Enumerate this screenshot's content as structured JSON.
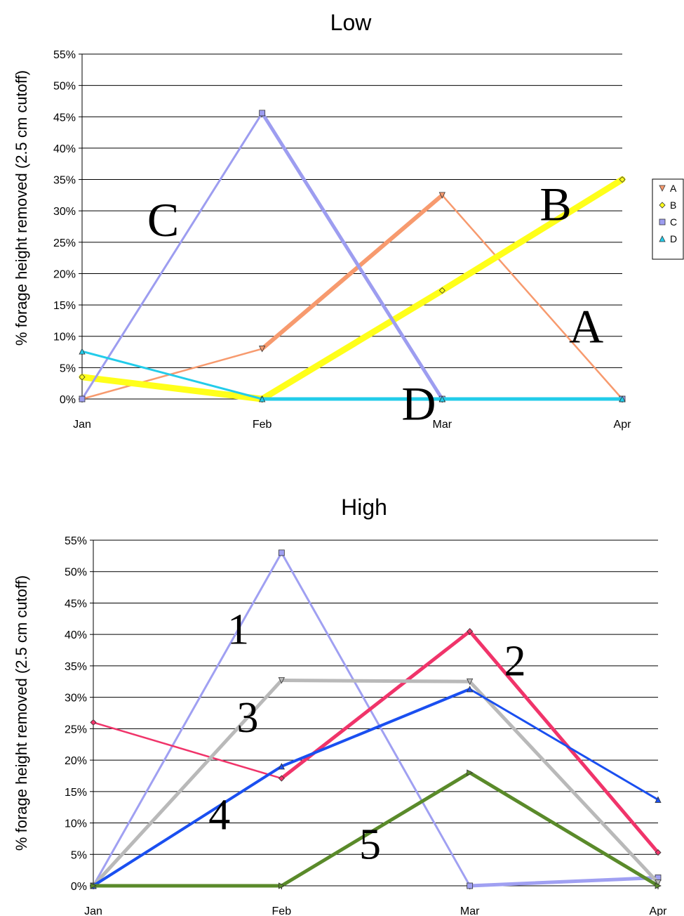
{
  "chart_data": [
    {
      "type": "line",
      "title": "Low",
      "ylabel": "% forage height removed (2.5 cm cutoff)",
      "categories": [
        "Jan",
        "Feb",
        "Mar",
        "Apr"
      ],
      "ylim": [
        0,
        55
      ],
      "yticks": [
        "0%",
        "5%",
        "10%",
        "15%",
        "20%",
        "25%",
        "30%",
        "35%",
        "40%",
        "45%",
        "50%",
        "55%"
      ],
      "grid": true,
      "legend": "right",
      "series": [
        {
          "name": "A",
          "values": [
            0,
            8,
            32.5,
            0
          ],
          "color": "#f79a6e",
          "marker": "triangle-down",
          "widths": [
            2.5,
            6,
            2.5
          ]
        },
        {
          "name": "B",
          "values": [
            3.5,
            0,
            17.3,
            35
          ],
          "color": "#ffff1a",
          "marker": "diamond",
          "widths": [
            9,
            9,
            9
          ]
        },
        {
          "name": "C",
          "values": [
            0,
            45.6,
            0,
            0
          ],
          "color": "#9d9df0",
          "marker": "square",
          "widths": [
            3,
            5,
            0
          ]
        },
        {
          "name": "D",
          "values": [
            7.6,
            0,
            0,
            0
          ],
          "color": "#22ccea",
          "marker": "triangle-up",
          "widths": [
            3,
            5,
            5
          ]
        }
      ],
      "annotations": [
        {
          "text": "C",
          "x": 0.45,
          "y": 26
        },
        {
          "text": "B",
          "x": 2.63,
          "y": 28.5
        },
        {
          "text": "A",
          "x": 2.8,
          "y": 9
        },
        {
          "text": "D",
          "x": 1.87,
          "y": -3.3
        }
      ]
    },
    {
      "type": "line",
      "title": "High",
      "ylabel": "% forage height removed (2.5 cm cutoff)",
      "categories": [
        "Jan",
        "Feb",
        "Mar",
        "Apr"
      ],
      "ylim": [
        0,
        55
      ],
      "yticks": [
        "0%",
        "5%",
        "10%",
        "15%",
        "20%",
        "25%",
        "30%",
        "35%",
        "40%",
        "45%",
        "50%",
        "55%"
      ],
      "grid": true,
      "legend": "none",
      "series": [
        {
          "values": [
            0,
            53,
            0,
            1.3
          ],
          "color": "#a0a0f2",
          "marker": "square",
          "widths": [
            3,
            3,
            5
          ]
        },
        {
          "values": [
            26,
            17.1,
            40.5,
            5.3
          ],
          "color": "#f0346a",
          "marker": "diamond",
          "widths": [
            2.5,
            5,
            5
          ]
        },
        {
          "values": [
            0,
            32.7,
            32.5,
            0.5
          ],
          "color": "#b9b9b9",
          "marker": "triangle-down",
          "widths": [
            5,
            5,
            5
          ]
        },
        {
          "values": [
            0,
            19,
            31.3,
            13.7
          ],
          "color": "#1a4ff0",
          "marker": "triangle-up",
          "widths": [
            4,
            4,
            3
          ]
        },
        {
          "values": [
            0,
            0,
            18,
            0
          ],
          "color": "#5a8a2a",
          "marker": "triangle-right",
          "widths": [
            5,
            5,
            5
          ]
        }
      ],
      "annotations": [
        {
          "text": "1",
          "x": 0.77,
          "y": 38.5
        },
        {
          "text": "2",
          "x": 2.24,
          "y": 33.5
        },
        {
          "text": "3",
          "x": 0.82,
          "y": 24.5
        },
        {
          "text": "4",
          "x": 0.67,
          "y": 9
        },
        {
          "text": "5",
          "x": 1.47,
          "y": 4.3
        }
      ]
    }
  ]
}
